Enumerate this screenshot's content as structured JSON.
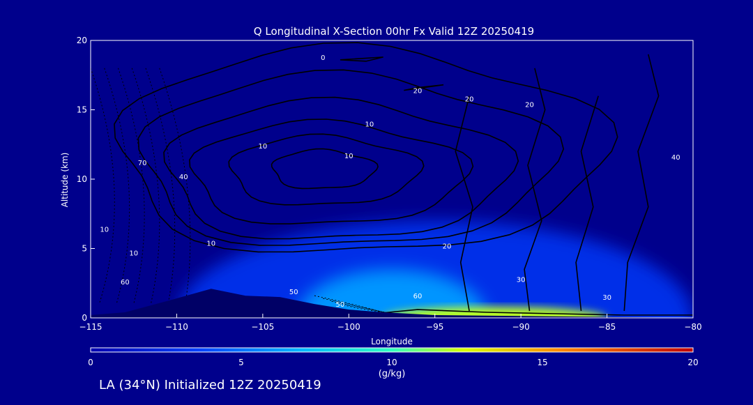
{
  "chart_data": {
    "type": "heatmap",
    "title": "Q Longitudinal X-Section 00hr  Fx Valid 12Z 20250419",
    "xlabel": "Longitude",
    "ylabel": "Altitude (km)",
    "xlim": [
      -115,
      -80
    ],
    "ylim": [
      0,
      20
    ],
    "x_ticks": [
      "−115",
      "−110",
      "−105",
      "−100",
      "−95",
      "−90",
      "−85",
      "−80"
    ],
    "y_ticks": [
      "0",
      "5",
      "10",
      "15",
      "20"
    ],
    "colorbar": {
      "min": 0,
      "max": 20,
      "ticks": [
        "0",
        "5",
        "10",
        "15",
        "20"
      ],
      "unit": "(g/kg)",
      "colors": [
        "#0000b0",
        "#0058ff",
        "#00c8ff",
        "#40ffb0",
        "#f0ff00",
        "#ff8800",
        "#cc0000"
      ]
    },
    "colorbar_label": "(g/kg)",
    "moisture_fields": [
      {
        "lon_range": [
          -110,
          -80
        ],
        "alt_range": [
          0,
          7
        ],
        "q": 3
      },
      {
        "lon_range": [
          -103,
          -92
        ],
        "alt_range": [
          0,
          3.5
        ],
        "q": 6
      },
      {
        "lon_range": [
          -98,
          -85
        ],
        "alt_range": [
          0,
          0.8
        ],
        "q": 12
      }
    ],
    "terrain": [
      [
        -115,
        0.2
      ],
      [
        -113,
        0.4
      ],
      [
        -110,
        1.4
      ],
      [
        -108,
        2.1
      ],
      [
        -106,
        1.6
      ],
      [
        -104,
        1.5
      ],
      [
        -102,
        1.0
      ],
      [
        -100,
        0.6
      ],
      [
        -98,
        0.4
      ],
      [
        -95,
        0.2
      ],
      [
        -80,
        0.0
      ]
    ],
    "contour_labels": [
      "0",
      "10",
      "10",
      "10",
      "10",
      "10",
      "10",
      "20",
      "20",
      "20",
      "20",
      "30",
      "30",
      "40",
      "40",
      "50",
      "50",
      "60",
      "60",
      "70"
    ]
  },
  "footer": {
    "location_label": "LA (34°N) Initialized 12Z 20250419"
  },
  "colors": {
    "background": "#00008c",
    "terrain": "#000066",
    "contour": "#000000",
    "text": "#ffffff"
  }
}
